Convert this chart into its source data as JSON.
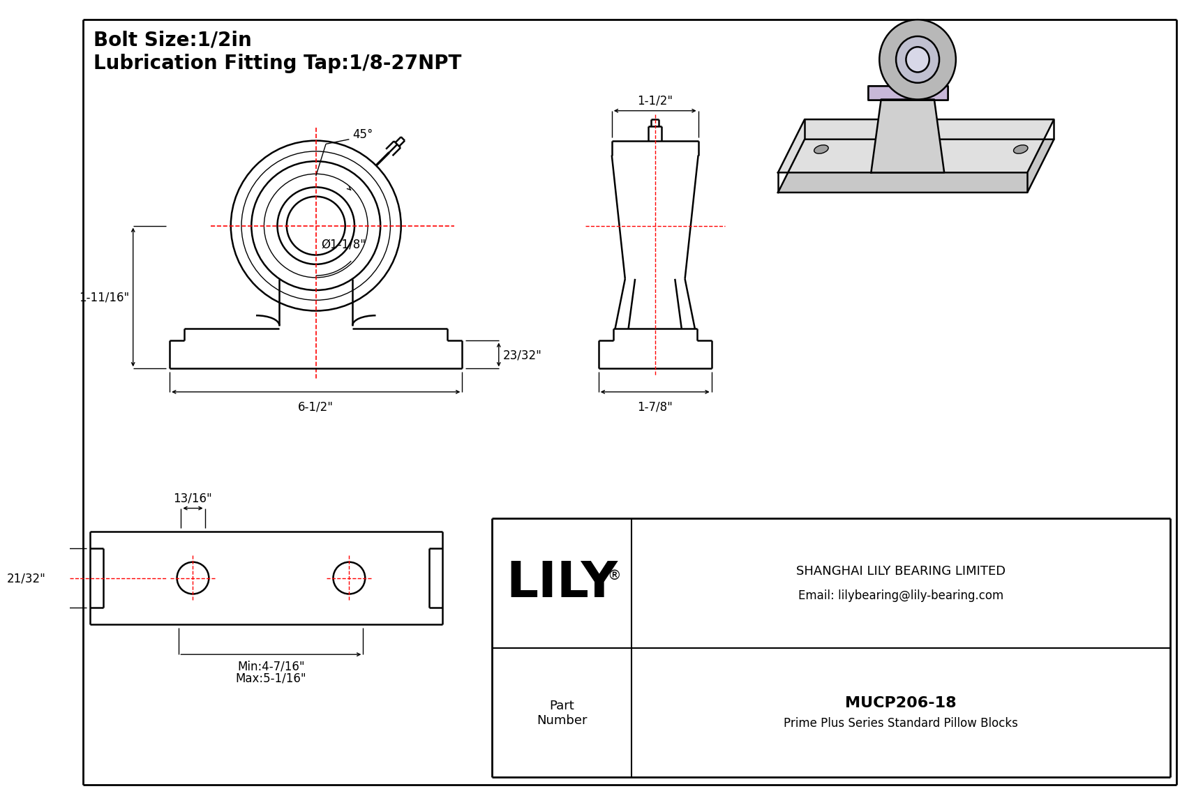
{
  "title_line1": "Bolt Size:1/2in",
  "title_line2": "Lubrication Fitting Tap:1/8-27NPT",
  "bg_color": "#ffffff",
  "line_color": "#000000",
  "red_color": "#ff0000",
  "title_fontsize": 20,
  "dim_fontsize": 12,
  "border_color": "#000000",
  "company_name": "SHANGHAI LILY BEARING LIMITED",
  "company_email": "Email: lilybearing@lily-bearing.com",
  "part_label": "Part\nNumber",
  "part_number": "MUCP206-18",
  "part_series": "Prime Plus Series Standard Pillow Blocks",
  "lily_text": "LILY",
  "dim_45": "45°",
  "dim_bore": "Ø1-1/8\"",
  "dim_base_width": "6-1/2\"",
  "dim_height": "1-11/16\"",
  "dim_side": "23/32\"",
  "dim_top": "1-1/2\"",
  "dim_side2": "1-7/8\"",
  "dim_slot1": "13/16\"",
  "dim_slot2": "21/32\"",
  "dim_min": "Min:4-7/16\"",
  "dim_max": "Max:5-1/16\""
}
